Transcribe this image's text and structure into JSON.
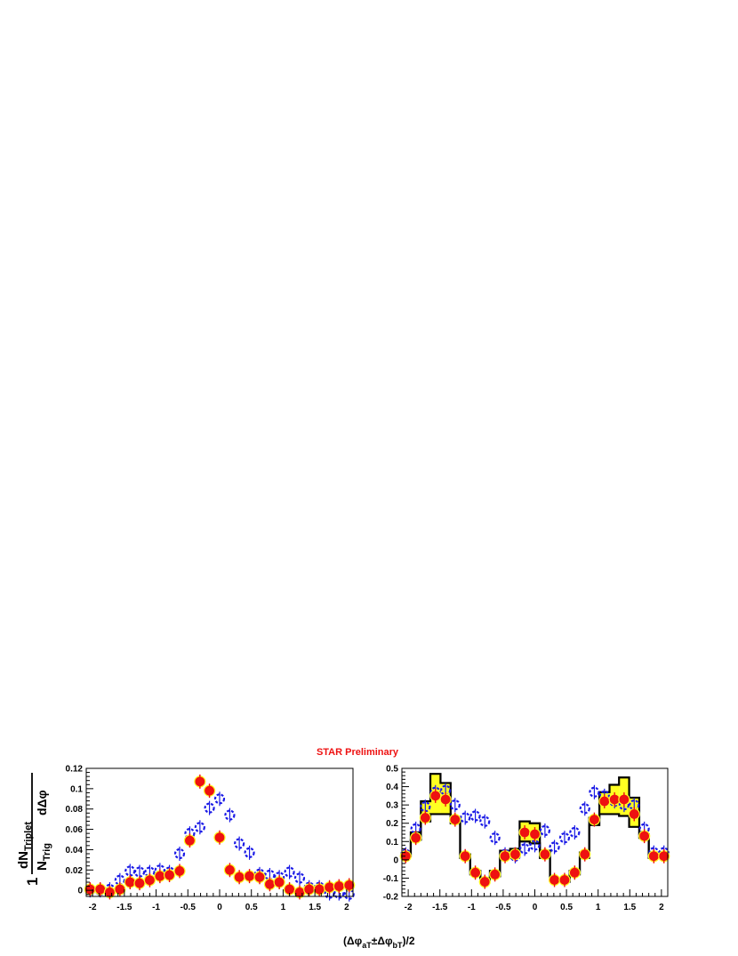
{
  "header": {
    "preliminary": "STAR Preliminary"
  },
  "labels": {
    "y_numerator": "dN",
    "y_numerator_sub": "Triplet",
    "y_one": "1",
    "y_denominator": "N",
    "y_denominator_sub": "Trig",
    "y_dphi": "dΔφ",
    "x_open": "(Δφ",
    "x_sub_a": "aT",
    "x_pm": "±Δφ",
    "x_sub_b": "bT",
    "x_close": ")/2"
  },
  "colors": {
    "open_marker": "#1a1ae6",
    "filled_marker": "#ee1111",
    "band": "#ffff22",
    "prelim": "#ee1111"
  },
  "chart_data": [
    {
      "type": "scatter",
      "title": "",
      "xlabel": "(Δφ_aT±Δφ_bT)/2",
      "ylabel": "1/N_Trig dN_Triplet/dΔφ",
      "xlim": [
        -2.1,
        2.1
      ],
      "ylim": [
        -0.006,
        0.12
      ],
      "grid": false,
      "xticks": [
        -2,
        -1.5,
        -1,
        -0.5,
        0,
        0.5,
        1,
        1.5,
        2
      ],
      "xtick_labels": [
        "-2",
        "-1.5",
        "-1",
        "-0.5",
        "0",
        "0.5",
        "1",
        "1.5",
        "2"
      ],
      "yticks": [
        0,
        0.02,
        0.04,
        0.06,
        0.08,
        0.1,
        0.12
      ],
      "ytick_labels": [
        "0",
        "0.02",
        "0.04",
        "0.06",
        "0.08",
        "0.1",
        "0.12"
      ],
      "series": [
        {
          "marker": "open-circle",
          "x": [
            -2.04,
            -1.88,
            -1.73,
            -1.57,
            -1.41,
            -1.26,
            -1.1,
            -0.94,
            -0.79,
            -0.63,
            -0.47,
            -0.31,
            -0.16,
            0.0,
            0.16,
            0.31,
            0.47,
            0.63,
            0.79,
            0.94,
            1.1,
            1.26,
            1.41,
            1.57,
            1.73,
            1.88,
            2.04
          ],
          "y": [
            0.0,
            0.0,
            0.001,
            0.01,
            0.019,
            0.018,
            0.018,
            0.02,
            0.018,
            0.036,
            0.056,
            0.062,
            0.081,
            0.09,
            0.074,
            0.046,
            0.037,
            0.016,
            0.015,
            0.013,
            0.018,
            0.012,
            0.003,
            0.003,
            -0.003,
            -0.003,
            -0.004
          ]
        },
        {
          "marker": "filled-circle",
          "x": [
            -2.04,
            -1.88,
            -1.73,
            -1.57,
            -1.41,
            -1.26,
            -1.1,
            -0.94,
            -0.79,
            -0.63,
            -0.47,
            -0.31,
            -0.16,
            0.0,
            0.16,
            0.31,
            0.47,
            0.63,
            0.79,
            0.94,
            1.1,
            1.26,
            1.41,
            1.57,
            1.73,
            1.88,
            2.04
          ],
          "y": [
            0.001,
            0.001,
            -0.002,
            0.001,
            0.008,
            0.007,
            0.01,
            0.014,
            0.015,
            0.019,
            0.049,
            0.107,
            0.098,
            0.052,
            0.02,
            0.013,
            0.014,
            0.013,
            0.006,
            0.008,
            0.001,
            -0.002,
            0.001,
            0.001,
            0.003,
            0.004,
            0.005
          ]
        }
      ]
    },
    {
      "type": "scatter",
      "title": "",
      "xlabel": "(Δφ_aT±Δφ_bT)/2",
      "xlim": [
        -2.1,
        2.1
      ],
      "ylim": [
        -0.2,
        0.5
      ],
      "grid": false,
      "xticks": [
        -2,
        -1.5,
        -1,
        -0.5,
        0,
        0.5,
        1,
        1.5,
        2
      ],
      "xtick_labels": [
        "-2",
        "-1.5",
        "-1",
        "-0.5",
        "0",
        "0.5",
        "1",
        "1.5",
        "2"
      ],
      "yticks": [
        -0.2,
        -0.1,
        0,
        0.1,
        0.2,
        0.3,
        0.4,
        0.5
      ],
      "ytick_labels": [
        "-0.2",
        "-0.1",
        "0",
        "0.1",
        "0.2",
        "0.3",
        "0.4",
        "0.5"
      ],
      "bin_edges": [
        -2.12,
        -1.96,
        -1.8,
        -1.65,
        -1.49,
        -1.33,
        -1.18,
        -1.02,
        -0.86,
        -0.71,
        -0.55,
        -0.39,
        -0.24,
        -0.08,
        0.08,
        0.24,
        0.39,
        0.55,
        0.71,
        0.86,
        1.02,
        1.18,
        1.33,
        1.49,
        1.65,
        1.8,
        1.96,
        2.12
      ],
      "band_upper": [
        0.03,
        0.15,
        0.32,
        0.47,
        0.42,
        0.23,
        0.03,
        -0.06,
        -0.1,
        -0.06,
        0.05,
        0.06,
        0.21,
        0.2,
        0.05,
        -0.1,
        -0.1,
        -0.06,
        0.04,
        0.23,
        0.37,
        0.41,
        0.45,
        0.34,
        0.14,
        0.03,
        0.03
      ],
      "band_lower": [
        0.02,
        0.11,
        0.21,
        0.25,
        0.25,
        0.2,
        0.01,
        -0.08,
        -0.11,
        -0.09,
        0.01,
        0.02,
        0.1,
        0.09,
        0.01,
        -0.11,
        -0.12,
        -0.08,
        0.01,
        0.19,
        0.25,
        0.25,
        0.24,
        0.18,
        0.12,
        0.01,
        0.01
      ],
      "series": [
        {
          "marker": "open-circle",
          "x": [
            -2.04,
            -1.88,
            -1.73,
            -1.57,
            -1.41,
            -1.26,
            -1.1,
            -0.94,
            -0.79,
            -0.63,
            -0.47,
            -0.31,
            -0.16,
            0.0,
            0.16,
            0.31,
            0.47,
            0.63,
            0.79,
            0.94,
            1.1,
            1.26,
            1.41,
            1.57,
            1.73,
            1.88,
            2.04
          ],
          "y": [
            0.03,
            0.17,
            0.29,
            0.37,
            0.38,
            0.3,
            0.23,
            0.24,
            0.21,
            0.12,
            0.03,
            0.02,
            0.06,
            0.08,
            0.16,
            0.07,
            0.12,
            0.15,
            0.28,
            0.37,
            0.35,
            0.32,
            0.3,
            0.3,
            0.17,
            0.04,
            0.04
          ]
        },
        {
          "marker": "filled-circle",
          "x": [
            -2.04,
            -1.88,
            -1.73,
            -1.57,
            -1.41,
            -1.26,
            -1.1,
            -0.94,
            -0.79,
            -0.63,
            -0.47,
            -0.31,
            -0.16,
            0.0,
            0.16,
            0.31,
            0.47,
            0.63,
            0.79,
            0.94,
            1.1,
            1.26,
            1.41,
            1.57,
            1.73,
            1.88,
            2.04
          ],
          "y": [
            0.02,
            0.12,
            0.23,
            0.35,
            0.33,
            0.22,
            0.02,
            -0.07,
            -0.12,
            -0.08,
            0.02,
            0.03,
            0.15,
            0.14,
            0.03,
            -0.11,
            -0.11,
            -0.07,
            0.03,
            0.22,
            0.32,
            0.33,
            0.33,
            0.25,
            0.13,
            0.02,
            0.02
          ]
        }
      ]
    }
  ]
}
